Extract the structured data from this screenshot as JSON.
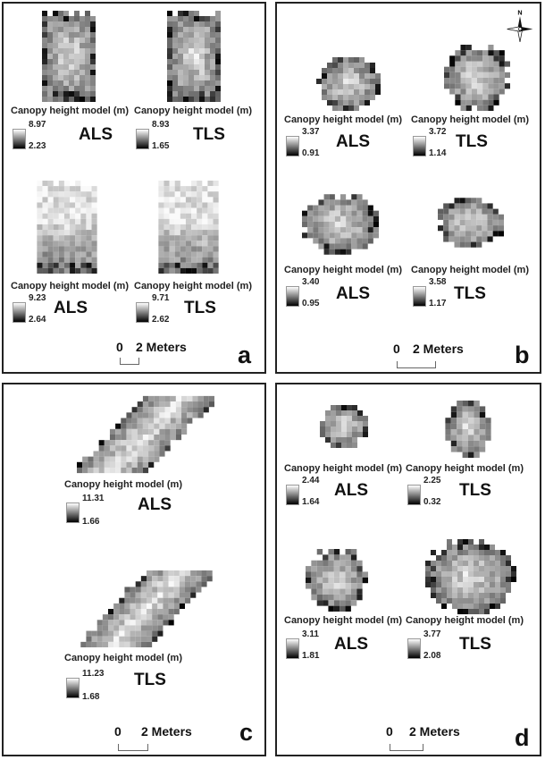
{
  "legend_title": "Canopy height model (m)",
  "scale": {
    "zero": "0",
    "distance": "2 Meters"
  },
  "north_label": "N",
  "panels": {
    "a": {
      "letter": "a",
      "maps": [
        {
          "sensor": "ALS",
          "max": "8.97",
          "min": "2.23"
        },
        {
          "sensor": "TLS",
          "max": "8.93",
          "min": "1.65"
        },
        {
          "sensor": "ALS",
          "max": "9.23",
          "min": "2.64"
        },
        {
          "sensor": "TLS",
          "max": "9.71",
          "min": "2.62"
        }
      ]
    },
    "b": {
      "letter": "b",
      "maps": [
        {
          "sensor": "ALS",
          "max": "3.37",
          "min": "0.91"
        },
        {
          "sensor": "TLS",
          "max": "3.72",
          "min": "1.14"
        },
        {
          "sensor": "ALS",
          "max": "3.40",
          "min": "0.95"
        },
        {
          "sensor": "TLS",
          "max": "3.58",
          "min": "1.17"
        }
      ]
    },
    "c": {
      "letter": "c",
      "maps": [
        {
          "sensor": "ALS",
          "max": "11.31",
          "min": "1.66"
        },
        {
          "sensor": "TLS",
          "max": "11.23",
          "min": "1.68"
        }
      ]
    },
    "d": {
      "letter": "d",
      "maps": [
        {
          "sensor": "ALS",
          "max": "2.44",
          "min": "1.64"
        },
        {
          "sensor": "TLS",
          "max": "2.25",
          "min": "0.32"
        },
        {
          "sensor": "ALS",
          "max": "3.11",
          "min": "1.81"
        },
        {
          "sensor": "TLS",
          "max": "3.77",
          "min": "2.08"
        }
      ]
    }
  }
}
